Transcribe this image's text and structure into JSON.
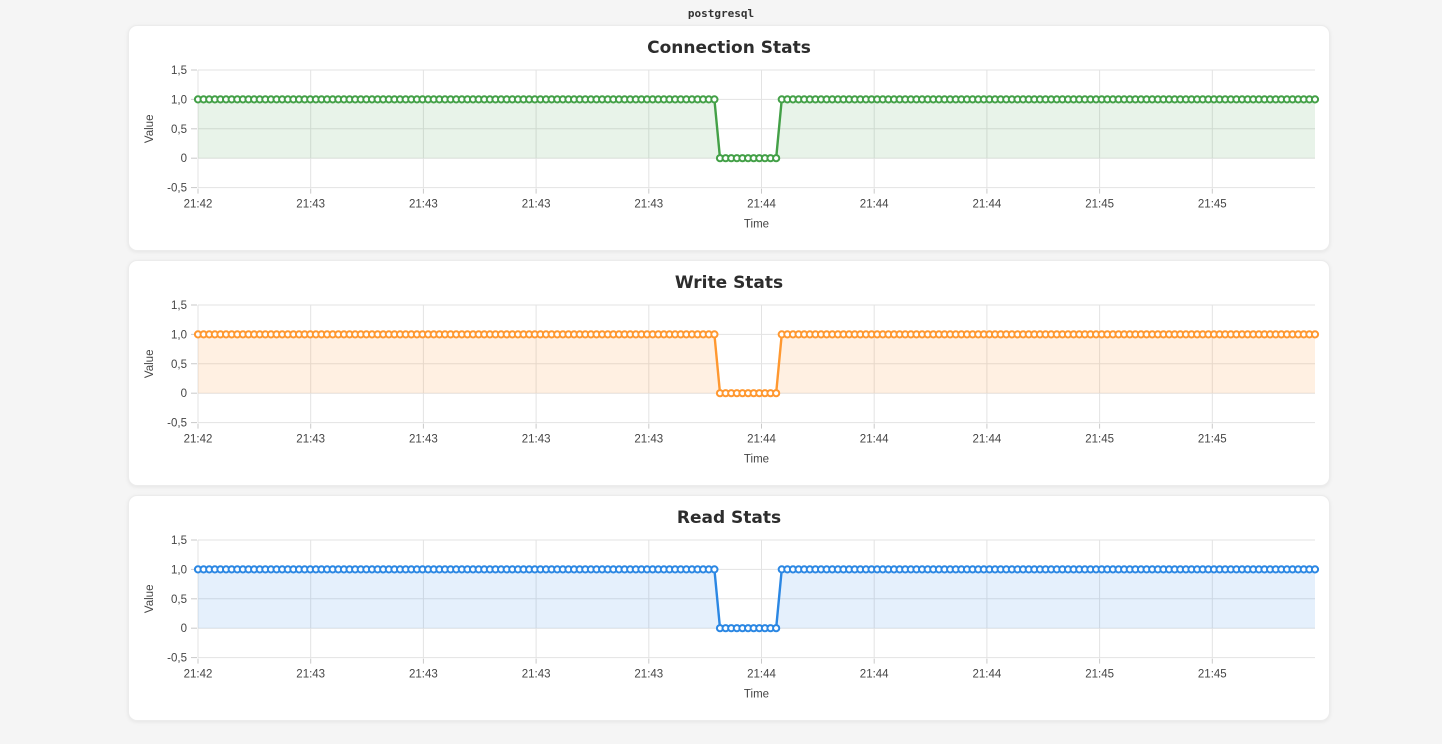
{
  "page": {
    "header": "postgresql"
  },
  "chart_data": [
    {
      "type": "line",
      "title": "Connection Stats",
      "xlabel": "Time",
      "ylabel": "Value",
      "ylim": [
        -0.5,
        1.5
      ],
      "ytick_values": [
        1.5,
        1.0,
        0.5,
        0,
        -0.5
      ],
      "ytick_labels": [
        "1,5",
        "1,0",
        "0,5",
        "0",
        "-0,5"
      ],
      "xtick_labels": [
        "21:42",
        "21:43",
        "21:43",
        "21:43",
        "21:43",
        "21:44",
        "21:44",
        "21:44",
        "21:45",
        "21:45"
      ],
      "line_color": "#43a047",
      "fill_color": "#43a047",
      "fill_opacity": 0.12,
      "marker": "open-circle",
      "n_points": 200,
      "segments": [
        {
          "from_frac": 0.0,
          "to_frac": 0.4623,
          "value": 1
        },
        {
          "from_frac": 0.466,
          "to_frac": 0.5202,
          "value": 0
        },
        {
          "from_frac": 0.5245,
          "to_frac": 1.0,
          "value": 1
        }
      ],
      "summary": "Value 1.0 from 21:42, drops to 0 briefly just before 21:44, returns to 1.0 through 21:45"
    },
    {
      "type": "line",
      "title": "Write Stats",
      "xlabel": "Time",
      "ylabel": "Value",
      "ylim": [
        -0.5,
        1.5
      ],
      "ytick_values": [
        1.5,
        1.0,
        0.5,
        0,
        -0.5
      ],
      "ytick_labels": [
        "1,5",
        "1,0",
        "0,5",
        "0",
        "-0,5"
      ],
      "xtick_labels": [
        "21:42",
        "21:43",
        "21:43",
        "21:43",
        "21:43",
        "21:44",
        "21:44",
        "21:44",
        "21:45",
        "21:45"
      ],
      "line_color": "#ff9830",
      "fill_color": "#ff9830",
      "fill_opacity": 0.14,
      "marker": "open-circle",
      "n_points": 200,
      "segments": [
        {
          "from_frac": 0.0,
          "to_frac": 0.4623,
          "value": 1
        },
        {
          "from_frac": 0.466,
          "to_frac": 0.5202,
          "value": 0
        },
        {
          "from_frac": 0.5245,
          "to_frac": 1.0,
          "value": 1
        }
      ],
      "summary": "Value 1.0 from 21:42, drops to 0 briefly just before 21:44, returns to 1.0 through 21:45"
    },
    {
      "type": "line",
      "title": "Read Stats",
      "xlabel": "Time",
      "ylabel": "Value",
      "ylim": [
        -0.5,
        1.5
      ],
      "ytick_values": [
        1.5,
        1.0,
        0.5,
        0,
        -0.5
      ],
      "ytick_labels": [
        "1,5",
        "1,0",
        "0,5",
        "0",
        "-0,5"
      ],
      "xtick_labels": [
        "21:42",
        "21:43",
        "21:43",
        "21:43",
        "21:43",
        "21:44",
        "21:44",
        "21:44",
        "21:45",
        "21:45"
      ],
      "line_color": "#2b87e3",
      "fill_color": "#2b87e3",
      "fill_opacity": 0.12,
      "marker": "open-circle",
      "n_points": 200,
      "segments": [
        {
          "from_frac": 0.0,
          "to_frac": 0.4623,
          "value": 1
        },
        {
          "from_frac": 0.466,
          "to_frac": 0.5202,
          "value": 0
        },
        {
          "from_frac": 0.5245,
          "to_frac": 1.0,
          "value": 1
        }
      ],
      "summary": "Value 1.0 from 21:42, drops to 0 briefly just before 21:44, returns to 1.0 through 21:45"
    }
  ]
}
